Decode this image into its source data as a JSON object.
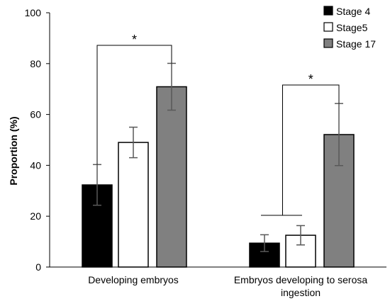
{
  "chart_data": {
    "type": "bar",
    "ylabel": "Proportion (%)",
    "ylim": [
      0,
      100
    ],
    "yticks": [
      0,
      20,
      40,
      60,
      80,
      100
    ],
    "categories": [
      [
        "Developing embryos"
      ],
      [
        "Embryos developing to serosa",
        "ingestion"
      ]
    ],
    "series": [
      {
        "name": "Stage 4",
        "color": "#000000",
        "values": [
          32.3,
          9.4
        ],
        "errors": [
          8.0,
          3.3
        ]
      },
      {
        "name": "Stage5",
        "color": "#ffffff",
        "values": [
          49.0,
          12.5
        ],
        "errors": [
          6.0,
          3.8
        ]
      },
      {
        "name": "Stage 17",
        "color": "#808080",
        "values": [
          70.9,
          52.1
        ],
        "errors": [
          9.2,
          12.2
        ]
      }
    ],
    "legend": "top-right",
    "grid": false,
    "annotations": [
      "*",
      "*"
    ]
  }
}
